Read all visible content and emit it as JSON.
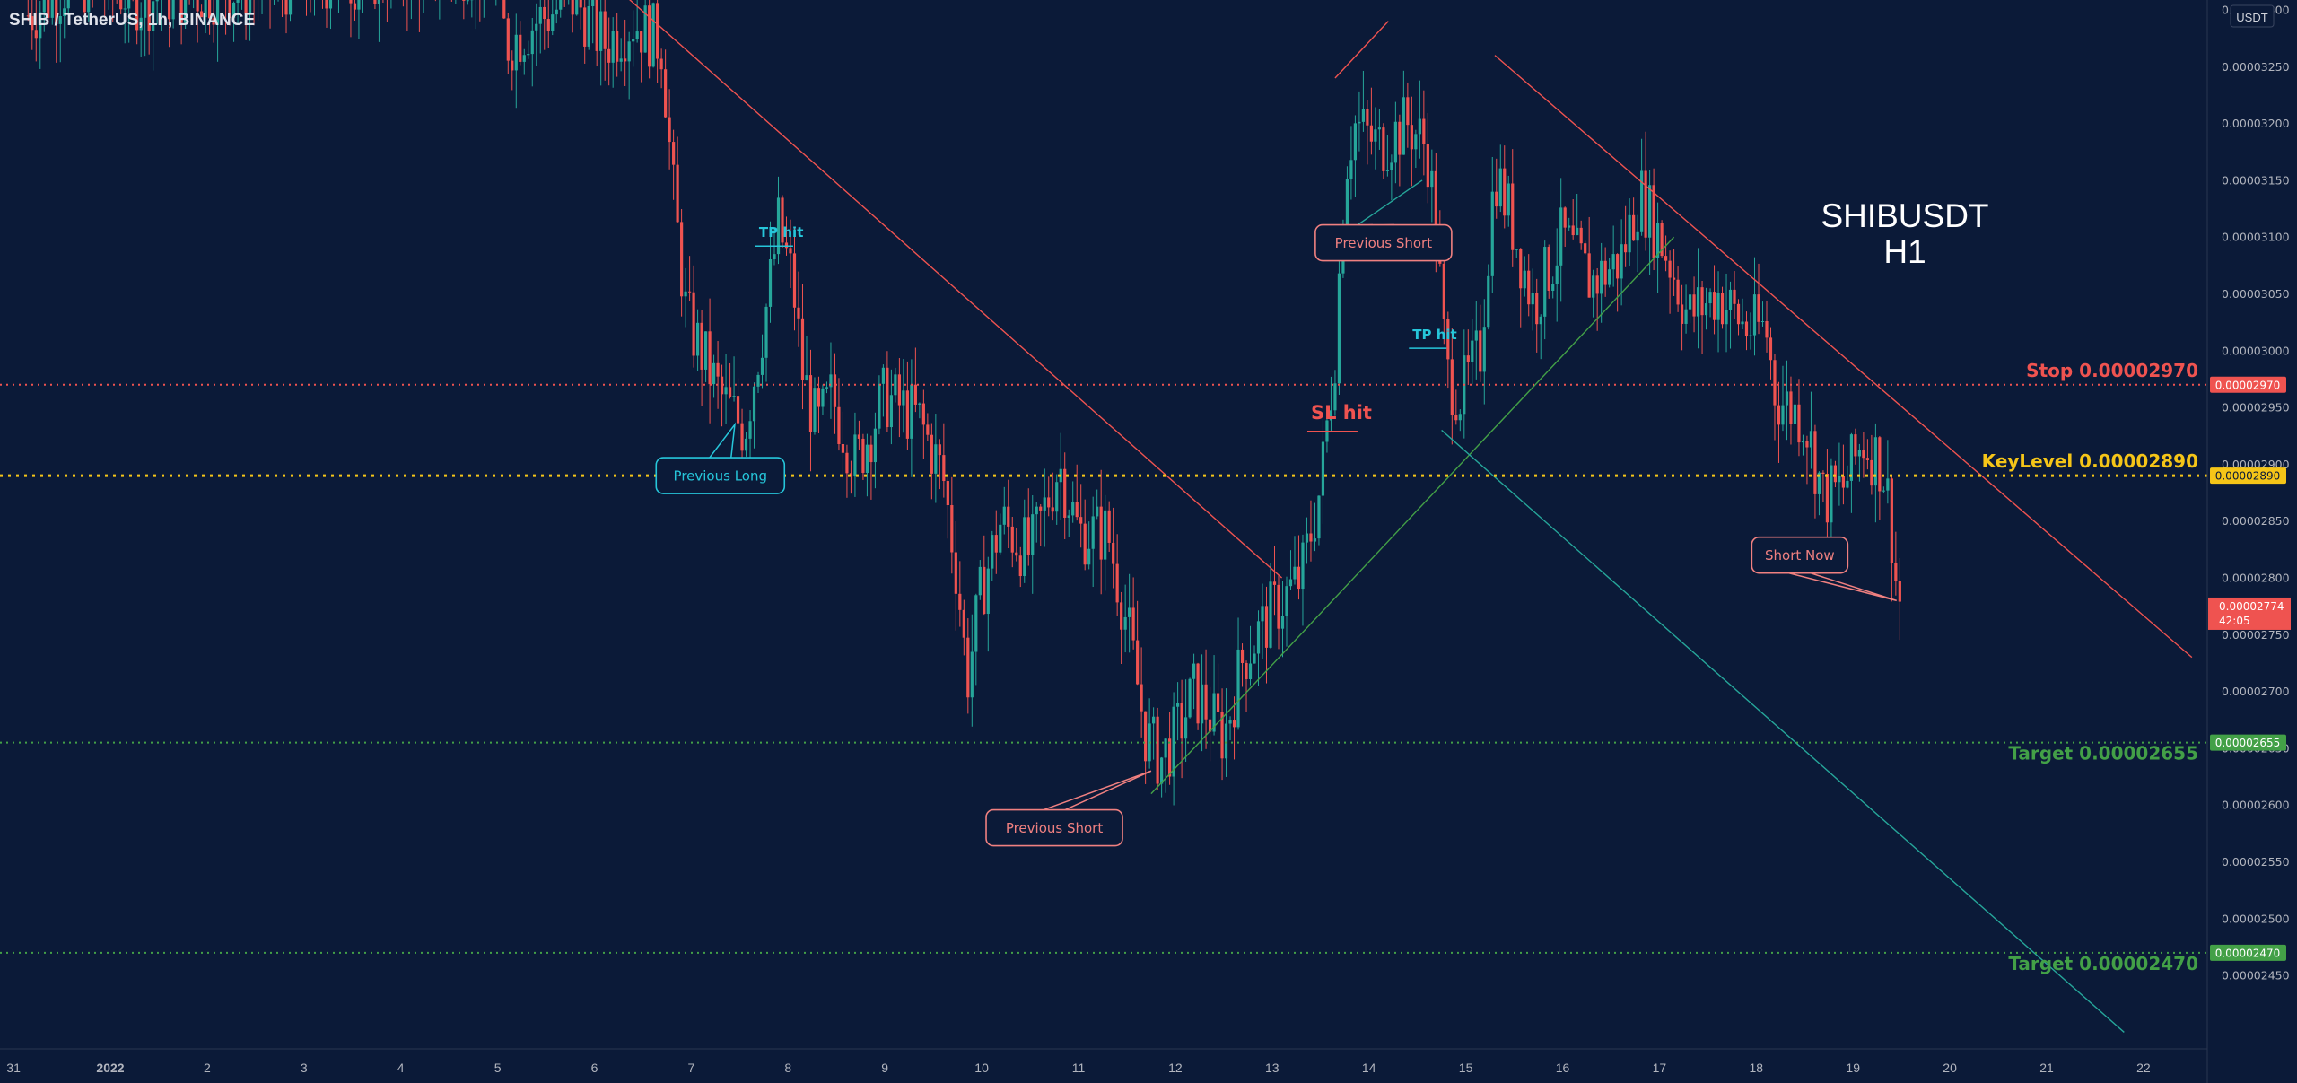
{
  "header": {
    "title": "SHIB / TetherUS, 1h, BINANCE",
    "currency_button": "USDT"
  },
  "watermark": {
    "line1": "SHIBUSDT",
    "line2": "H1"
  },
  "chart_data": {
    "type": "candlestick",
    "colors": {
      "background": "#0b1a38",
      "up": "#26a69a",
      "down": "#ef5350",
      "stop": "#ef5350",
      "key": "#f5c518",
      "target": "#43a047",
      "trend_down": "#ef5350",
      "trend_up": "#43a047",
      "trend_teal": "#26a69a",
      "current_price": "#ef5350",
      "annotation_short": "#f08080",
      "annotation_long": "#26c6da"
    },
    "x_axis": {
      "ticks": [
        "31",
        "2022",
        "2",
        "3",
        "4",
        "5",
        "6",
        "7",
        "8",
        "9",
        "10",
        "11",
        "12",
        "13",
        "14",
        "15",
        "16",
        "17",
        "18",
        "19",
        "20",
        "21",
        "22"
      ]
    },
    "y_axis": {
      "ylim": [
        2.413e-05,
        3.3e-05
      ],
      "tick_labels": [
        "0.00003300",
        "0.00003250",
        "0.00003200",
        "0.00003150",
        "0.00003100",
        "0.00003050",
        "0.00003000",
        "0.00002950",
        "0.00002900",
        "0.00002850",
        "0.00002800",
        "0.00002750",
        "0.00002700",
        "0.00002650",
        "0.00002600",
        "0.00002550",
        "0.00002500",
        "0.00002450"
      ],
      "tick_values": [
        3.3e-05,
        3.25e-05,
        3.2e-05,
        3.15e-05,
        3.1e-05,
        3.05e-05,
        3e-05,
        2.95e-05,
        2.9e-05,
        2.85e-05,
        2.8e-05,
        2.75e-05,
        2.7e-05,
        2.65e-05,
        2.6e-05,
        2.55e-05,
        2.5e-05,
        2.45e-05
      ]
    },
    "price_path": [
      [
        -0.85,
        3.295e-05
      ],
      [
        -0.4,
        3.325e-05
      ],
      [
        0.0,
        3.32e-05
      ],
      [
        0.3,
        3.31e-05
      ],
      [
        3.9,
        3.34e-05
      ],
      [
        4.1,
        3.27e-05
      ],
      [
        4.4,
        3.29e-05
      ],
      [
        4.8,
        3.31e-05
      ],
      [
        5.1,
        3.27e-05
      ],
      [
        5.4,
        3.29e-05
      ],
      [
        5.7,
        3.27e-05
      ],
      [
        5.8,
        3.15e-05
      ],
      [
        5.95,
        3.03e-05
      ],
      [
        6.05,
        3.01e-05
      ],
      [
        6.3,
        2.96e-05
      ],
      [
        6.55,
        2.93e-05
      ],
      [
        6.8,
        3.05e-05
      ],
      [
        6.9,
        3.11e-05
      ],
      [
        7.05,
        3.06e-05
      ],
      [
        7.15,
        2.98e-05
      ],
      [
        7.3,
        2.93e-05
      ],
      [
        7.45,
        2.96e-05
      ],
      [
        7.7,
        2.9e-05
      ],
      [
        8.0,
        2.96e-05
      ],
      [
        8.35,
        2.94e-05
      ],
      [
        8.6,
        2.89e-05
      ],
      [
        8.75,
        2.8e-05
      ],
      [
        8.85,
        2.71e-05
      ],
      [
        9.0,
        2.79e-05
      ],
      [
        9.2,
        2.85e-05
      ],
      [
        9.5,
        2.82e-05
      ],
      [
        9.8,
        2.9e-05
      ],
      [
        10.0,
        2.84e-05
      ],
      [
        10.3,
        2.84e-05
      ],
      [
        10.5,
        2.76e-05
      ],
      [
        10.7,
        2.66e-05
      ],
      [
        10.85,
        2.64e-05
      ],
      [
        11.0,
        2.66e-05
      ],
      [
        11.2,
        2.7e-05
      ],
      [
        11.5,
        2.66e-05
      ],
      [
        11.7,
        2.73e-05
      ],
      [
        12.0,
        2.77e-05
      ],
      [
        12.3,
        2.8e-05
      ],
      [
        12.5,
        2.88e-05
      ],
      [
        12.65,
        3e-05
      ],
      [
        12.75,
        3.16e-05
      ],
      [
        12.85,
        3.2e-05
      ],
      [
        13.1,
        3.18e-05
      ],
      [
        13.4,
        3.2e-05
      ],
      [
        13.6,
        3.18e-05
      ],
      [
        13.7,
        3.1e-05
      ],
      [
        13.8,
        2.98e-05
      ],
      [
        13.95,
        2.96e-05
      ],
      [
        14.15,
        3e-05
      ],
      [
        14.3,
        3.16e-05
      ],
      [
        14.45,
        3.12e-05
      ],
      [
        14.7,
        3.04e-05
      ],
      [
        15.0,
        3.1e-05
      ],
      [
        15.3,
        3.06e-05
      ],
      [
        15.6,
        3.08e-05
      ],
      [
        15.8,
        3.14e-05
      ],
      [
        16.1,
        3.08e-05
      ],
      [
        16.3,
        3.03e-05
      ],
      [
        16.6,
        3.05e-05
      ],
      [
        16.9,
        3.02e-05
      ],
      [
        17.1,
        3.02e-05
      ],
      [
        17.2,
        2.96e-05
      ],
      [
        17.5,
        2.94e-05
      ],
      [
        17.7,
        2.87e-05
      ],
      [
        17.9,
        2.88e-05
      ],
      [
        18.1,
        2.92e-05
      ],
      [
        18.3,
        2.9e-05
      ],
      [
        18.38,
        2.86e-05
      ],
      [
        18.45,
        2.79e-05
      ],
      [
        18.5,
        2.774e-05
      ]
    ],
    "trendlines": [
      {
        "name": "downtrend-1",
        "color": "trend_down",
        "from": [
          5.35,
          3.31e-05
        ],
        "to": [
          12.1,
          2.8e-05
        ]
      },
      {
        "name": "downtrend-2",
        "color": "trend_down",
        "from": [
          14.3,
          3.26e-05
        ],
        "to": [
          21.5,
          2.73e-05
        ]
      },
      {
        "name": "uptrend",
        "color": "trend_up",
        "from": [
          10.75,
          2.61e-05
        ],
        "to": [
          16.15,
          3.1e-05
        ]
      },
      {
        "name": "lower-trend",
        "color": "trend_teal",
        "from": [
          13.75,
          2.93e-05
        ],
        "to": [
          20.8,
          2.4e-05
        ]
      },
      {
        "name": "channel-up",
        "color": "trend_teal",
        "from": [
          12.7,
          3.1e-05
        ],
        "to": [
          13.55,
          3.15e-05
        ]
      },
      {
        "name": "channel-top",
        "color": "trend_down",
        "from": [
          12.65,
          3.24e-05
        ],
        "to": [
          13.2,
          3.29e-05
        ]
      }
    ],
    "levels": [
      {
        "name": "stop-level",
        "label": "Stop 0.00002970",
        "tag": "0.00002970",
        "value": 2.97e-05,
        "color": "stop",
        "style": "dotted"
      },
      {
        "name": "key-level",
        "label": "KeyLevel 0.00002890",
        "tag": "0.00002890",
        "value": 2.89e-05,
        "color": "key",
        "style": "dotted"
      },
      {
        "name": "target-level-1",
        "label": "Target 0.00002655",
        "tag": "0.00002655",
        "value": 2.655e-05,
        "color": "target",
        "style": "dotted"
      },
      {
        "name": "target-level-2",
        "label": "Target 0.00002470",
        "tag": "0.00002470",
        "value": 2.47e-05,
        "color": "target",
        "style": "dotted"
      }
    ],
    "current_price": {
      "value": 2.774e-05,
      "label": "0.00002774",
      "countdown": "42:05"
    },
    "callouts": [
      {
        "name": "callout-previous-long",
        "text": "Previous Long",
        "color": "annotation_long",
        "at": [
          6.3,
          2.89e-05
        ],
        "point": [
          6.45,
          2.935e-05
        ]
      },
      {
        "name": "callout-previous-short-1",
        "text": "Previous Short",
        "color": "annotation_short",
        "at": [
          9.75,
          2.58e-05
        ],
        "point": [
          10.75,
          2.63e-05
        ]
      },
      {
        "name": "callout-previous-short-2",
        "text": "Previous Short",
        "color": "annotation_short",
        "at": [
          13.15,
          3.095e-05
        ],
        "point": [
          12.75,
          3.11e-05
        ]
      },
      {
        "name": "callout-short-now",
        "text": "Short Now",
        "color": "annotation_short",
        "at": [
          17.45,
          2.82e-05
        ],
        "point": [
          18.45,
          2.78e-05
        ]
      }
    ],
    "text_marks": [
      {
        "name": "tp-hit-label-1",
        "text": "TP hit",
        "color": "annotation_long",
        "at": [
          6.7,
          3.1e-05
        ]
      },
      {
        "name": "tp-hit-label-2",
        "text": "TP hit",
        "color": "annotation_long",
        "at": [
          13.45,
          3.01e-05
        ]
      },
      {
        "name": "sl-hit-label",
        "text": "SL hit",
        "color": "stop",
        "at": [
          12.4,
          2.94e-05
        ]
      }
    ]
  }
}
